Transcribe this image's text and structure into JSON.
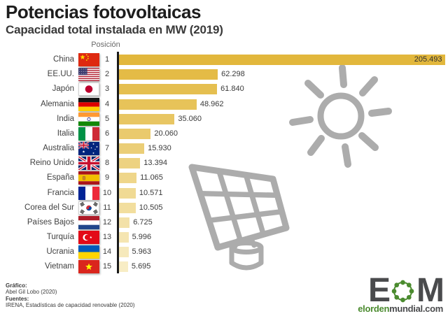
{
  "title": "Potencias fotovoltaicas",
  "subtitle": "Capacidad total instalada en MW (2019)",
  "position_header": "Posición",
  "chart_data": {
    "type": "bar",
    "orientation": "horizontal",
    "title": "Potencias fotovoltaicas",
    "subtitle": "Capacidad total instalada en MW (2019)",
    "unit": "MW",
    "xlim": [
      0,
      205493
    ],
    "grid": false,
    "legend": false,
    "bar_color_start": "#E2B73C",
    "bar_color_end": "#F8EDC5",
    "rows": [
      {
        "rank": 1,
        "country": "China",
        "flag": "cn",
        "value": 205493,
        "value_label": "205.493",
        "label_inside": true
      },
      {
        "rank": 2,
        "country": "EE.UU.",
        "flag": "us",
        "value": 62298,
        "value_label": "62.298",
        "label_inside": false
      },
      {
        "rank": 3,
        "country": "Japón",
        "flag": "jp",
        "value": 61840,
        "value_label": "61.840",
        "label_inside": false
      },
      {
        "rank": 4,
        "country": "Alemania",
        "flag": "de",
        "value": 48962,
        "value_label": "48.962",
        "label_inside": false
      },
      {
        "rank": 5,
        "country": "India",
        "flag": "in",
        "value": 35060,
        "value_label": "35.060",
        "label_inside": false
      },
      {
        "rank": 6,
        "country": "Italia",
        "flag": "it",
        "value": 20060,
        "value_label": "20.060",
        "label_inside": false
      },
      {
        "rank": 7,
        "country": "Australia",
        "flag": "au",
        "value": 15930,
        "value_label": "15.930",
        "label_inside": false
      },
      {
        "rank": 8,
        "country": "Reino Unido",
        "flag": "gb",
        "value": 13394,
        "value_label": "13.394",
        "label_inside": false
      },
      {
        "rank": 9,
        "country": "España",
        "flag": "es",
        "value": 11065,
        "value_label": "11.065",
        "label_inside": false
      },
      {
        "rank": 10,
        "country": "Francia",
        "flag": "fr",
        "value": 10571,
        "value_label": "10.571",
        "label_inside": false
      },
      {
        "rank": 11,
        "country": "Corea del Sur",
        "flag": "kr",
        "value": 10505,
        "value_label": "10.505",
        "label_inside": false
      },
      {
        "rank": 12,
        "country": "Países Bajos",
        "flag": "nl",
        "value": 6725,
        "value_label": "6.725",
        "label_inside": false
      },
      {
        "rank": 13,
        "country": "Turquía",
        "flag": "tr",
        "value": 5996,
        "value_label": "5.996",
        "label_inside": false
      },
      {
        "rank": 14,
        "country": "Ucrania",
        "flag": "ua",
        "value": 5963,
        "value_label": "5.963",
        "label_inside": false
      },
      {
        "rank": 15,
        "country": "Vietnam",
        "flag": "vn",
        "value": 5695,
        "value_label": "5.695",
        "label_inside": false
      }
    ]
  },
  "decor": {
    "sun_icon": "sun-icon",
    "solar_panel_icon": "solar-panel-icon",
    "gray": "#ACACAC"
  },
  "footer": {
    "credit_label": "Gráfico:",
    "credit": "Abel Gil Lobo (2020)",
    "sources_label": "Fuentes:",
    "sources": "IRENA, Estadísticas de capacidad renovable (2020)"
  },
  "logo": {
    "letter_e": "E",
    "letter_m": "M",
    "domain_green": "elorden",
    "domain_dark": "mundial.com",
    "green": "#4B8B2F",
    "dark": "#4A4B4D"
  }
}
